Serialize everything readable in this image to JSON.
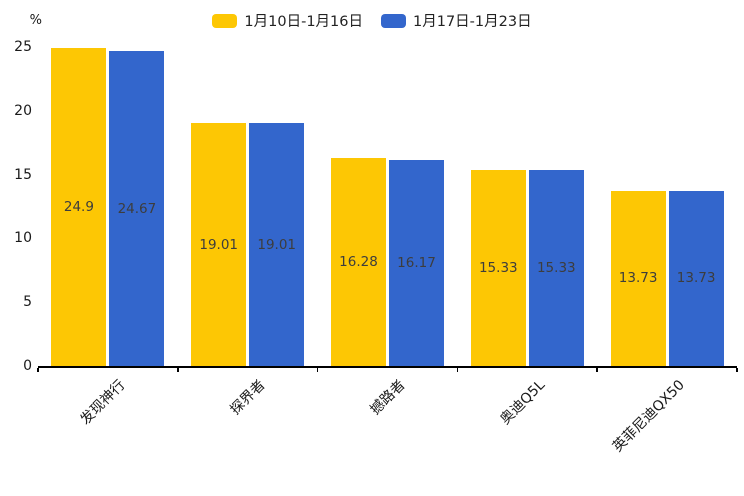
{
  "chart_data": {
    "type": "bar",
    "title": "",
    "categories": [
      "发现神行",
      "探界者",
      "撼路者",
      "奥迪Q5L",
      "英菲尼迪QX50"
    ],
    "series": [
      {
        "name": "1月10日-1月16日",
        "color": "#FDC704",
        "values": [
          24.9,
          19.01,
          16.28,
          15.33,
          13.73
        ]
      },
      {
        "name": "1月17日-1月23日",
        "color": "#3366CC",
        "values": [
          24.67,
          19.01,
          16.17,
          15.33,
          13.73
        ]
      }
    ],
    "xlabel": "",
    "ylabel": "%",
    "ylim": [
      0,
      25
    ],
    "yticks": [
      0,
      5,
      10,
      15,
      20,
      25
    ],
    "grid": false,
    "legend_position": "top",
    "value_labels": "inside-center",
    "value_label_color": "#3d3d3d",
    "axis_color": "#000000"
  }
}
